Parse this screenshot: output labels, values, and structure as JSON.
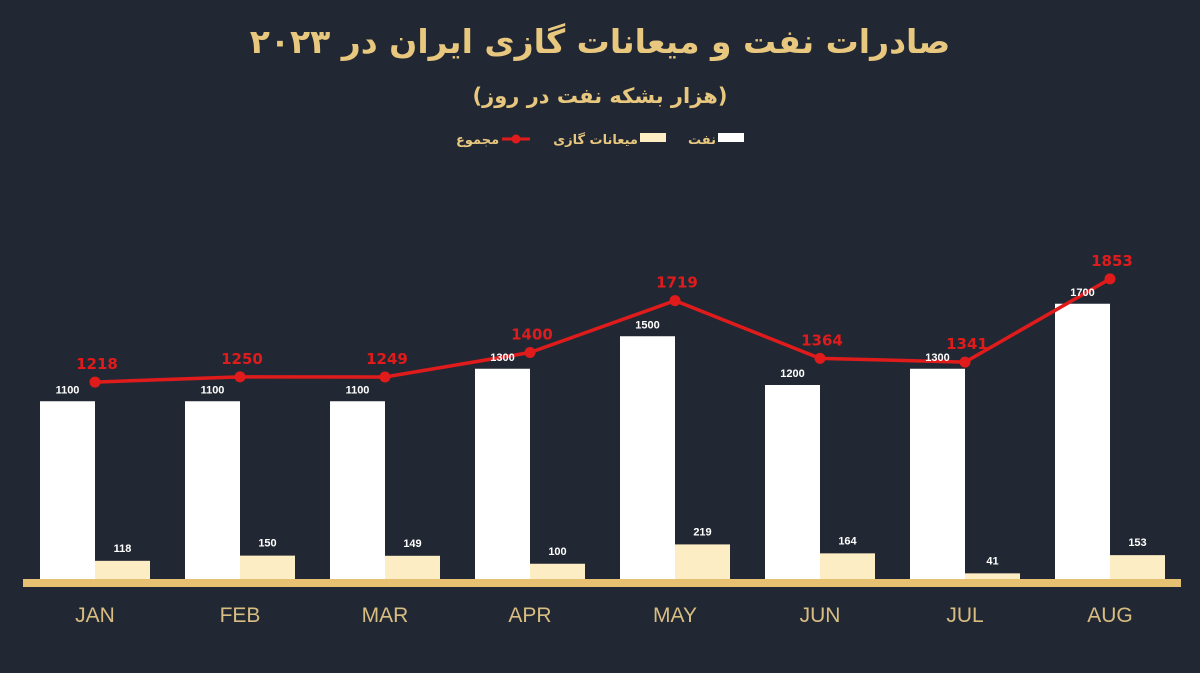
{
  "title": "صادرات نفت و میعانات گازی ایران در ۲۰۲۳",
  "subtitle": "(هزار بشکه نفت در روز)",
  "legend": [
    {
      "label": "نفت",
      "color": "#ffffff",
      "kind": "bar"
    },
    {
      "label": "میعانات گازی",
      "color": "#fdedc4",
      "kind": "bar"
    },
    {
      "label": "مجموع",
      "color": "#e01b1b",
      "kind": "line"
    }
  ],
  "colors": {
    "background": "#222833",
    "title": "#e8c77e",
    "axis": "#e6c171",
    "oil": "#ffffff",
    "condensate": "#fdedc4",
    "total": "#e01b1b",
    "month_label": "#d8bd82"
  },
  "chart_data": {
    "type": "bar",
    "title": "صادرات نفت و میعانات گازی ایران در ۲۰۲۳",
    "subtitle": "(هزار بشکه نفت در روز)",
    "xlabel": "",
    "ylabel": "",
    "categories": [
      "JAN",
      "FEB",
      "MAR",
      "APR",
      "MAY",
      "JUN",
      "JUL",
      "AUG"
    ],
    "series": [
      {
        "name": "نفت",
        "type": "bar",
        "values": [
          1100,
          1100,
          1100,
          1300,
          1500,
          1200,
          1300,
          1700
        ]
      },
      {
        "name": "میعانات گازی",
        "type": "bar",
        "values": [
          118,
          150,
          149,
          100,
          219,
          164,
          41,
          153
        ]
      },
      {
        "name": "مجموع",
        "type": "line",
        "values": [
          1218,
          1250,
          1249,
          1400,
          1719,
          1364,
          1341,
          1853
        ]
      }
    ],
    "ylim": [
      0,
      1900
    ],
    "grid": false,
    "y_axis_visible": false,
    "legend_position": "top"
  }
}
